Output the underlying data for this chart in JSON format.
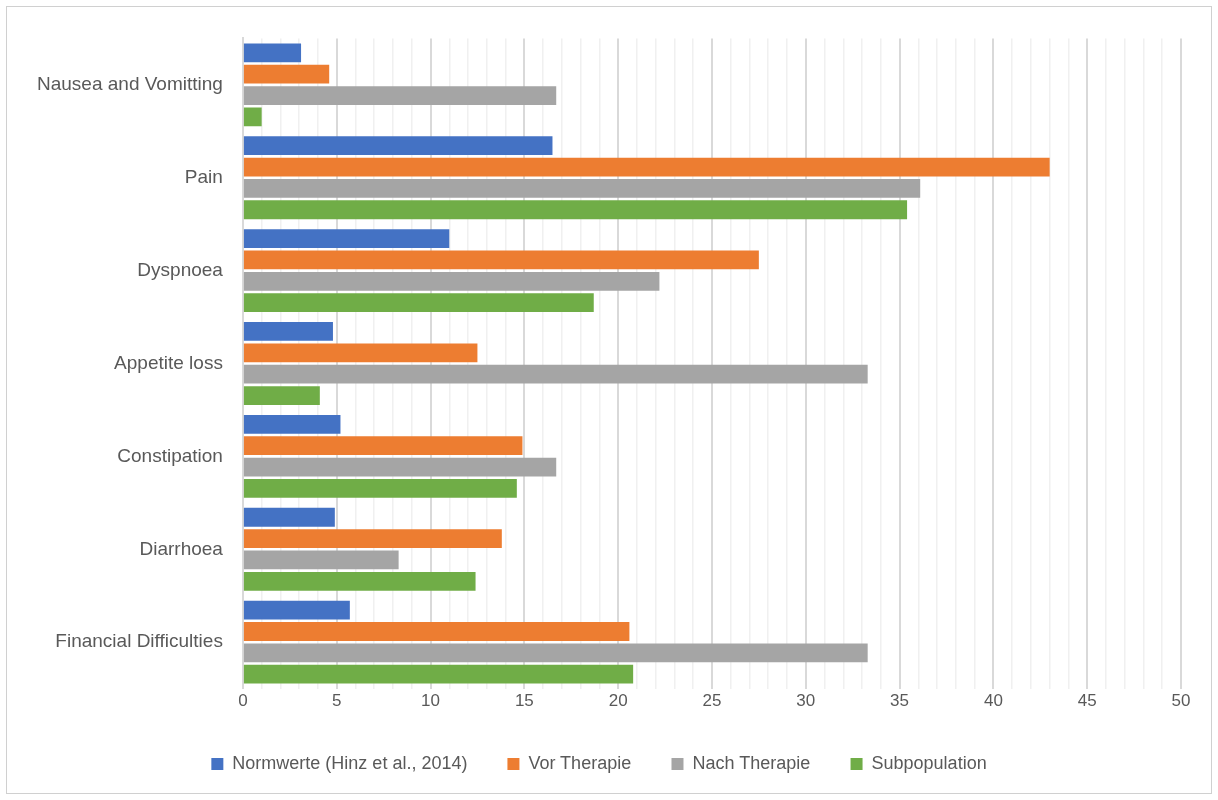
{
  "chart_data": {
    "type": "bar",
    "orientation": "horizontal",
    "categories": [
      "Nausea and Vomitting",
      "Pain",
      "Dyspnoea",
      "Appetite loss",
      "Constipation",
      "Diarrhoea",
      "Financial Difficulties"
    ],
    "series": [
      {
        "name": "Normwerte (Hinz et al., 2014)",
        "color": "#4472c4",
        "values": [
          3.1,
          16.5,
          11.0,
          4.8,
          5.2,
          4.9,
          5.7
        ]
      },
      {
        "name": "Vor Therapie",
        "color": "#ed7d31",
        "values": [
          4.6,
          43.0,
          27.5,
          12.5,
          14.9,
          13.8,
          20.6
        ]
      },
      {
        "name": "Nach Therapie",
        "color": "#a5a5a5",
        "values": [
          16.7,
          36.1,
          22.2,
          33.3,
          16.7,
          8.3,
          33.3
        ]
      },
      {
        "name": "Subpopulation",
        "color": "#70ad47",
        "values": [
          1.0,
          35.4,
          18.7,
          4.1,
          14.6,
          12.4,
          20.8
        ]
      }
    ],
    "xlim": [
      0,
      50
    ],
    "xticks": [
      0,
      {
        "value": 1,
        "label": null
      },
      {
        "value": 2,
        "label": null
      },
      {
        "value": 3,
        "label": null
      },
      {
        "value": 4,
        "label": null
      },
      5,
      {
        "value": 6,
        "label": null
      },
      {
        "value": 7,
        "label": null
      },
      {
        "value": 8,
        "label": null
      },
      {
        "value": 9,
        "label": null
      },
      10,
      {
        "value": 11,
        "label": null
      },
      {
        "value": 12,
        "label": null
      },
      {
        "value": 13,
        "label": null
      },
      {
        "value": 14,
        "label": null
      },
      15,
      {
        "value": 16,
        "label": null
      },
      {
        "value": 17,
        "label": null
      },
      {
        "value": 18,
        "label": null
      },
      {
        "value": 19,
        "label": null
      },
      20,
      {
        "value": 21,
        "label": null
      },
      {
        "value": 22,
        "label": null
      },
      {
        "value": 23,
        "label": null
      },
      {
        "value": 24,
        "label": null
      },
      25,
      {
        "value": 26,
        "label": null
      },
      {
        "value": 27,
        "label": null
      },
      {
        "value": 28,
        "label": null
      },
      {
        "value": 29,
        "label": null
      },
      30,
      {
        "value": 31,
        "label": null
      },
      {
        "value": 32,
        "label": null
      },
      {
        "value": 33,
        "label": null
      },
      {
        "value": 34,
        "label": null
      },
      35,
      {
        "value": 36,
        "label": null
      },
      {
        "value": 37,
        "label": null
      },
      {
        "value": 38,
        "label": null
      },
      {
        "value": 39,
        "label": null
      },
      40,
      {
        "value": 41,
        "label": null
      },
      {
        "value": 42,
        "label": null
      },
      {
        "value": 43,
        "label": null
      },
      {
        "value": 44,
        "label": null
      },
      45,
      {
        "value": 46,
        "label": null
      },
      {
        "value": 47,
        "label": null
      },
      {
        "value": 48,
        "label": null
      },
      {
        "value": 49,
        "label": null
      },
      50
    ],
    "grid": "x",
    "legend": "bottom"
  }
}
